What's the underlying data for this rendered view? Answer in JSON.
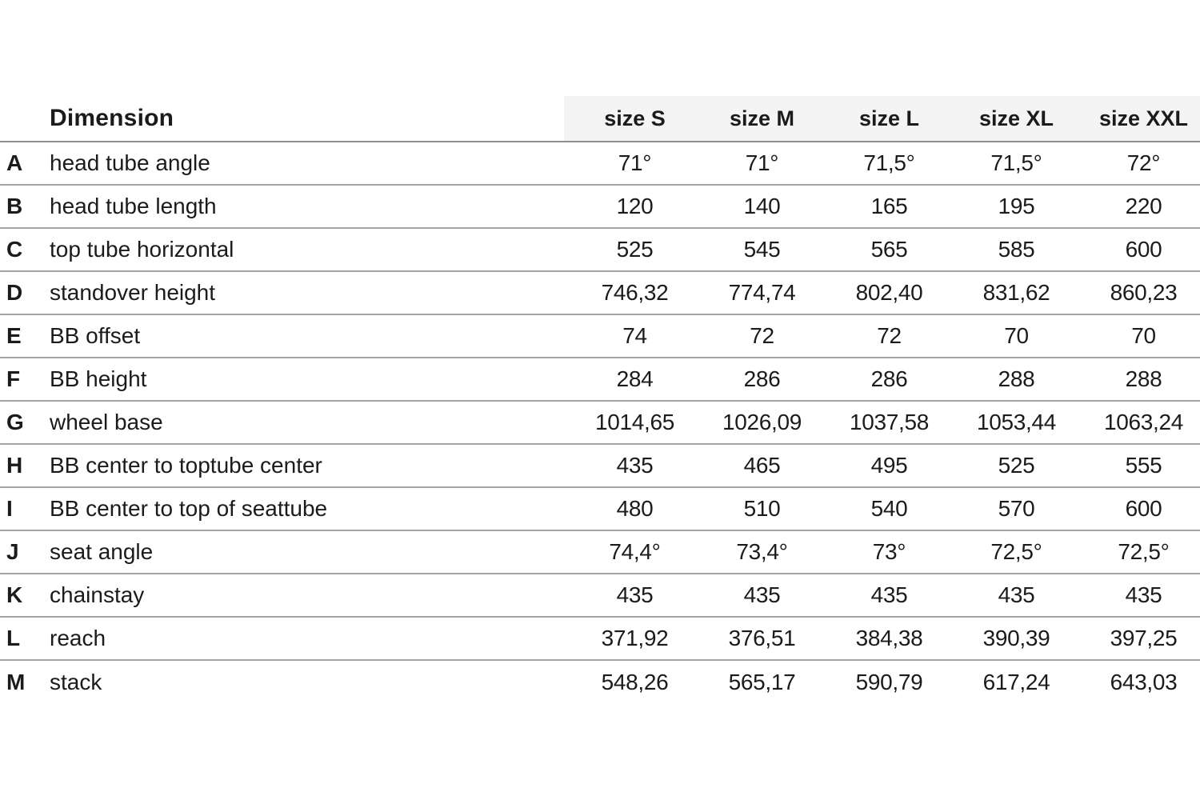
{
  "colors": {
    "background": "#ffffff",
    "text": "#1b1b1b",
    "header_band": "#f4f4f4",
    "header_rule": "#8d8d8d",
    "row_rule": "#a6a6a6"
  },
  "chart_data": {
    "type": "table",
    "dimension_header": "Dimension",
    "size_headers": [
      "size S",
      "size M",
      "size L",
      "size XL",
      "size XXL"
    ],
    "layout": {
      "grid": "horizontal-rules-only",
      "header_band_on_size_columns": true,
      "bottom_border": false
    },
    "rows": [
      {
        "letter": "A",
        "label": "head tube angle",
        "values": [
          "71°",
          "71°",
          "71,5°",
          "71,5°",
          "72°"
        ]
      },
      {
        "letter": "B",
        "label": "head tube length",
        "values": [
          "120",
          "140",
          "165",
          "195",
          "220"
        ]
      },
      {
        "letter": "C",
        "label": "top tube horizontal",
        "values": [
          "525",
          "545",
          "565",
          "585",
          "600"
        ]
      },
      {
        "letter": "D",
        "label": "standover height",
        "values": [
          "746,32",
          "774,74",
          "802,40",
          "831,62",
          "860,23"
        ]
      },
      {
        "letter": "E",
        "label": "BB offset",
        "values": [
          "74",
          "72",
          "72",
          "70",
          "70"
        ]
      },
      {
        "letter": "F",
        "label": "BB height",
        "values": [
          "284",
          "286",
          "286",
          "288",
          "288"
        ]
      },
      {
        "letter": "G",
        "label": "wheel base",
        "values": [
          "1014,65",
          "1026,09",
          "1037,58",
          "1053,44",
          "1063,24"
        ]
      },
      {
        "letter": "H",
        "label": "BB center to toptube center",
        "values": [
          "435",
          "465",
          "495",
          "525",
          "555"
        ]
      },
      {
        "letter": "I",
        "label": "BB center to top of seattube",
        "values": [
          "480",
          "510",
          "540",
          "570",
          "600"
        ]
      },
      {
        "letter": "J",
        "label": "seat angle",
        "values": [
          "74,4°",
          "73,4°",
          "73°",
          "72,5°",
          "72,5°"
        ]
      },
      {
        "letter": "K",
        "label": "chainstay",
        "values": [
          "435",
          "435",
          "435",
          "435",
          "435"
        ]
      },
      {
        "letter": "L",
        "label": "reach",
        "values": [
          "371,92",
          "376,51",
          "384,38",
          "390,39",
          "397,25"
        ]
      },
      {
        "letter": "M",
        "label": "stack",
        "values": [
          "548,26",
          "565,17",
          "590,79",
          "617,24",
          "643,03"
        ]
      }
    ]
  }
}
